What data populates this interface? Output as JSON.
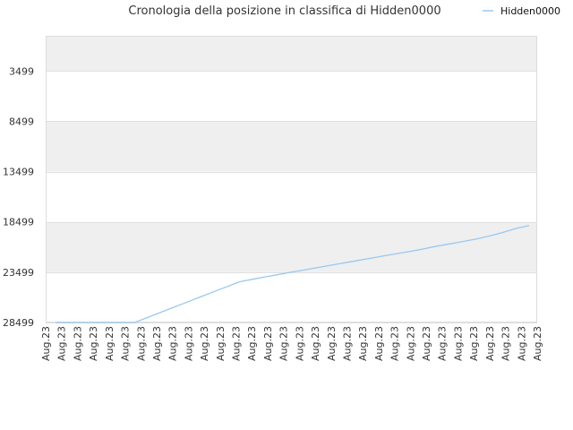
{
  "chart_data": {
    "type": "line",
    "title": "Cronologia della posizione in classifica di Hidden0000",
    "xlabel": "",
    "ylabel": "",
    "y_inverted": true,
    "ylim": [
      28499,
      0
    ],
    "y_ticks": [
      3499,
      8499,
      13499,
      18499,
      23499,
      28499
    ],
    "x_tick_labels": [
      "Aug.23",
      "Aug.23",
      "Aug.23",
      "Aug.23",
      "Aug.23",
      "Aug.23",
      "Aug.23",
      "Aug.23",
      "Aug.23",
      "Aug.23",
      "Aug.23",
      "Aug.23",
      "Aug.23",
      "Aug.23",
      "Aug.23",
      "Aug.23",
      "Aug.23",
      "Aug.23",
      "Aug.23",
      "Aug.23",
      "Aug.23",
      "Aug.23",
      "Aug.23",
      "Aug.23",
      "Aug.23",
      "Aug.23",
      "Aug.23",
      "Aug.23",
      "Aug.23",
      "Aug.23",
      "Aug.23",
      "Aug.23"
    ],
    "legend_position": "top-right",
    "grid": true,
    "band_colors": [
      "#efefef",
      "#ffffff"
    ],
    "series": [
      {
        "name": "Hidden0000",
        "color": "#99c8f0",
        "values": [
          28499,
          28499,
          28499,
          28499,
          28499,
          28499,
          28499,
          28000,
          27480,
          26980,
          26480,
          25960,
          25450,
          24950,
          24450,
          24200,
          23950,
          23720,
          23480,
          23250,
          23020,
          22790,
          22560,
          22330,
          22100,
          21860,
          21640,
          21420,
          21180,
          20900,
          20680,
          20440,
          20200,
          19900,
          19550,
          19150,
          18850
        ]
      }
    ]
  }
}
